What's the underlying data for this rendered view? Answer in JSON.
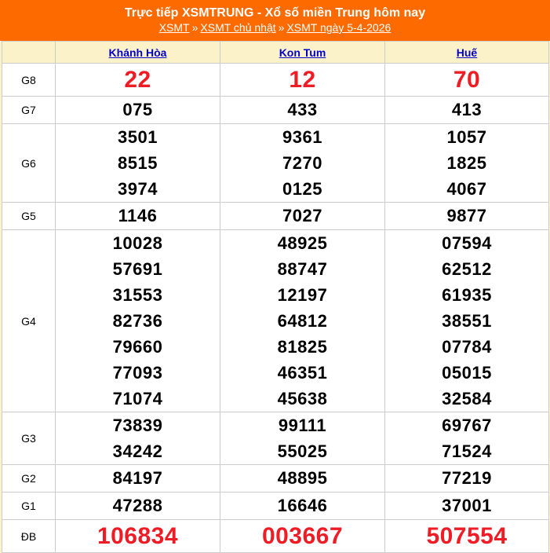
{
  "header": {
    "title": "Trực tiếp XSMTRUNG - Xổ số miền Trung hôm nay",
    "breadcrumb": [
      "XSMT",
      "XSMT chủ nhật",
      "XSMT ngày 5-4-2026"
    ],
    "separator": "»"
  },
  "table": {
    "columns": [
      "Khánh Hòa",
      "Kon Tum",
      "Huế"
    ],
    "rows": [
      {
        "label": "G8",
        "big": true,
        "values": [
          [
            "22"
          ],
          [
            "12"
          ],
          [
            "70"
          ]
        ]
      },
      {
        "label": "G7",
        "big": false,
        "values": [
          [
            "075"
          ],
          [
            "433"
          ],
          [
            "413"
          ]
        ]
      },
      {
        "label": "G6",
        "big": false,
        "values": [
          [
            "3501",
            "8515",
            "3974"
          ],
          [
            "9361",
            "7270",
            "0125"
          ],
          [
            "1057",
            "1825",
            "4067"
          ]
        ]
      },
      {
        "label": "G5",
        "big": false,
        "values": [
          [
            "1146"
          ],
          [
            "7027"
          ],
          [
            "9877"
          ]
        ]
      },
      {
        "label": "G4",
        "big": false,
        "values": [
          [
            "10028",
            "57691",
            "31553",
            "82736",
            "79660",
            "77093",
            "71074"
          ],
          [
            "48925",
            "88747",
            "12197",
            "64812",
            "81825",
            "46351",
            "45638"
          ],
          [
            "07594",
            "62512",
            "61935",
            "38551",
            "07784",
            "05015",
            "32584"
          ]
        ]
      },
      {
        "label": "G3",
        "big": false,
        "values": [
          [
            "73839",
            "34242"
          ],
          [
            "99111",
            "55025"
          ],
          [
            "69767",
            "71524"
          ]
        ]
      },
      {
        "label": "G2",
        "big": false,
        "values": [
          [
            "84197"
          ],
          [
            "48895"
          ],
          [
            "77219"
          ]
        ]
      },
      {
        "label": "G1",
        "big": false,
        "values": [
          [
            "47288"
          ],
          [
            "16646"
          ],
          [
            "37001"
          ]
        ]
      },
      {
        "label": "ĐB",
        "big": true,
        "values": [
          [
            "106834"
          ],
          [
            "003667"
          ],
          [
            "507554"
          ]
        ]
      }
    ]
  },
  "colors": {
    "header_background": "#FC6A00",
    "header_row_background": "#FCF2C9",
    "big_number_red": "#EE1C25",
    "link_blue": "#0000CC",
    "border_gray": "#CCCCCC"
  }
}
